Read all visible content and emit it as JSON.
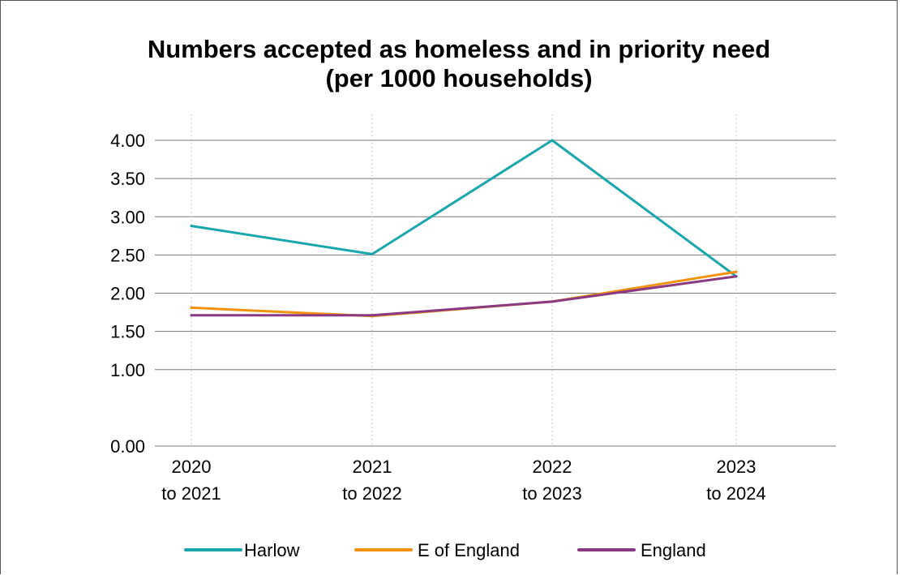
{
  "chart_data": {
    "type": "line",
    "title_lines": [
      "Numbers accepted as homeless and in priority need",
      "(per 1000 households)"
    ],
    "categories": [
      [
        "2020",
        "to 2021"
      ],
      [
        "2021",
        "to 2022"
      ],
      [
        "2022",
        "to 2023"
      ],
      [
        "2023",
        "to 2024"
      ]
    ],
    "y_ticks": [
      "0.00",
      "1.00",
      "1.50",
      "2.00",
      "2.50",
      "3.00",
      "3.50",
      "4.00"
    ],
    "ylim": [
      0,
      4.0
    ],
    "grid": true,
    "legend_position": "bottom",
    "series": [
      {
        "name": "Harlow",
        "color": "#1aa6ad",
        "values": [
          2.88,
          2.51,
          4.0,
          2.22
        ]
      },
      {
        "name": "E of England",
        "color": "#f2920f",
        "values": [
          1.81,
          1.7,
          1.89,
          2.28
        ]
      },
      {
        "name": "England",
        "color": "#8a3a82",
        "values": [
          1.71,
          1.71,
          1.89,
          2.22
        ]
      }
    ]
  }
}
